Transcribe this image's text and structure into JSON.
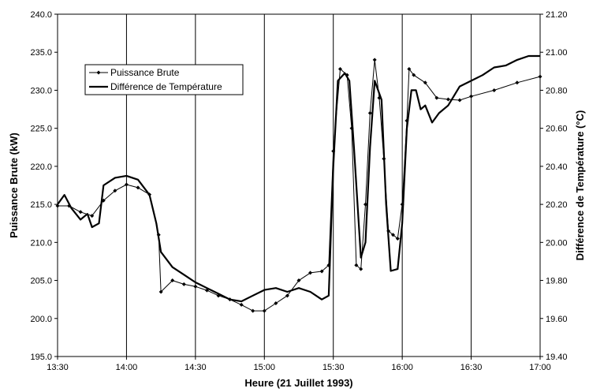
{
  "chart_data": {
    "type": "line",
    "title": "",
    "xlabel": "Heure (21 Juillet 1993)",
    "ylabel": "Puissance Brute (kW)",
    "y2label": "Différence de Température (°C)",
    "xlim": [
      "13:30",
      "17:00"
    ],
    "ylim": [
      195.0,
      240.0
    ],
    "y2lim": [
      19.4,
      21.2
    ],
    "grid": "vertical",
    "legend_position": "upper-left",
    "x_ticks": [
      "13:30",
      "14:00",
      "14:30",
      "15:00",
      "15:30",
      "16:00",
      "16:30",
      "17:00"
    ],
    "y_ticks": [
      "195.0",
      "200.0",
      "205.0",
      "210.0",
      "215.0",
      "220.0",
      "225.0",
      "230.0",
      "235.0",
      "240.0"
    ],
    "y2_ticks": [
      "19.40",
      "19.60",
      "19.80",
      "20.00",
      "20.20",
      "20.40",
      "20.60",
      "20.80",
      "21.00",
      "21.20"
    ],
    "series": [
      {
        "name": "Puissance Brute",
        "axis": "left",
        "marker": "diamond",
        "x": [
          "13:30",
          "13:35",
          "13:40",
          "13:45",
          "13:50",
          "13:55",
          "14:00",
          "14:05",
          "14:10",
          "14:14",
          "14:15",
          "14:20",
          "14:25",
          "14:30",
          "14:35",
          "14:40",
          "14:45",
          "14:50",
          "14:55",
          "15:00",
          "15:05",
          "15:10",
          "15:15",
          "15:20",
          "15:25",
          "15:28",
          "15:30",
          "15:33",
          "15:36",
          "15:38",
          "15:40",
          "15:42",
          "15:44",
          "15:46",
          "15:48",
          "15:50",
          "15:52",
          "15:54",
          "15:56",
          "15:58",
          "16:00",
          "16:02",
          "16:03",
          "16:05",
          "16:10",
          "16:15",
          "16:20",
          "16:25",
          "16:30",
          "16:40",
          "16:50",
          "17:00"
        ],
        "values": [
          214.8,
          214.8,
          214.0,
          213.5,
          215.5,
          216.8,
          217.6,
          217.2,
          216.3,
          211.0,
          203.5,
          205.0,
          204.5,
          204.2,
          203.7,
          203.0,
          202.5,
          201.8,
          201.0,
          201.0,
          202.0,
          203.0,
          205.0,
          206.0,
          206.2,
          207.0,
          222.0,
          232.8,
          232.0,
          225.0,
          207.0,
          206.5,
          215.0,
          227.0,
          234.0,
          229.0,
          221.0,
          211.5,
          211.0,
          210.5,
          215.0,
          226.0,
          232.8,
          232.0,
          231.0,
          229.0,
          228.8,
          228.7,
          229.2,
          230.0,
          231.0,
          231.8
        ]
      },
      {
        "name": "Différence de Température",
        "axis": "right",
        "marker": "none",
        "x": [
          "13:30",
          "13:33",
          "13:36",
          "13:40",
          "13:43",
          "13:45",
          "13:48",
          "13:50",
          "13:55",
          "14:00",
          "14:05",
          "14:10",
          "14:13",
          "14:15",
          "14:20",
          "14:25",
          "14:30",
          "14:35",
          "14:40",
          "14:45",
          "14:50",
          "14:55",
          "15:00",
          "15:05",
          "15:10",
          "15:15",
          "15:20",
          "15:25",
          "15:28",
          "15:30",
          "15:32",
          "15:35",
          "15:37",
          "15:39",
          "15:42",
          "15:44",
          "15:46",
          "15:48",
          "15:51",
          "15:53",
          "15:55",
          "15:58",
          "16:00",
          "16:02",
          "16:04",
          "16:06",
          "16:08",
          "16:10",
          "16:13",
          "16:16",
          "16:20",
          "16:25",
          "16:30",
          "16:35",
          "16:40",
          "16:45",
          "16:50",
          "16:55",
          "17:00"
        ],
        "values": [
          20.2,
          20.25,
          20.18,
          20.12,
          20.15,
          20.08,
          20.1,
          20.3,
          20.34,
          20.35,
          20.33,
          20.25,
          20.1,
          19.95,
          19.87,
          19.83,
          19.79,
          19.76,
          19.73,
          19.7,
          19.69,
          19.72,
          19.75,
          19.76,
          19.74,
          19.76,
          19.74,
          19.7,
          19.72,
          20.4,
          20.85,
          20.89,
          20.85,
          20.5,
          19.92,
          20.0,
          20.5,
          20.85,
          20.75,
          20.2,
          19.85,
          19.86,
          20.1,
          20.6,
          20.8,
          20.8,
          20.7,
          20.72,
          20.63,
          20.68,
          20.72,
          20.82,
          20.85,
          20.88,
          20.92,
          20.93,
          20.96,
          20.98,
          20.98
        ]
      }
    ]
  }
}
